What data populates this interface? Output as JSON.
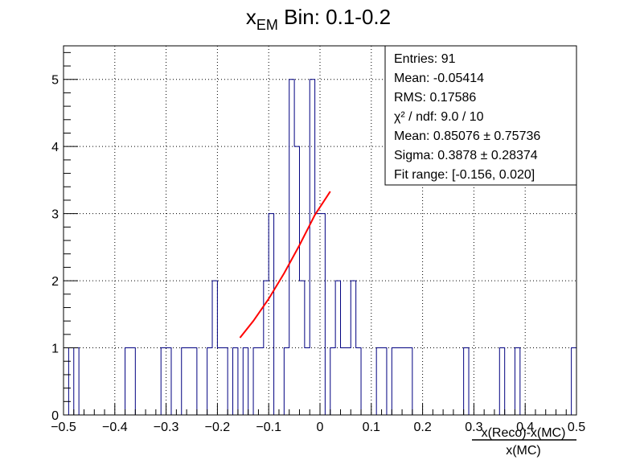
{
  "chart_data": {
    "type": "bar",
    "title": {
      "main": "x",
      "sub": "EM",
      "rest": " Bin: 0.1-0.2"
    },
    "xlabel": {
      "numerator": "x(Reco)-x(MC)",
      "denominator": "x(MC)"
    },
    "ylabel": "",
    "xlim": [
      -0.5,
      0.5
    ],
    "ylim": [
      0,
      5.5
    ],
    "grid": true,
    "x_ticks": [
      "−0.5",
      "−0.4",
      "−0.3",
      "−0.2",
      "−0.1",
      "0",
      "0.1",
      "0.2",
      "0.3",
      "0.4",
      "0.5"
    ],
    "y_ticks": [
      "0",
      "1",
      "2",
      "3",
      "4",
      "5"
    ],
    "bins": {
      "start": -0.5,
      "width": 0.01
    },
    "counts": [
      1,
      0,
      1,
      0,
      0,
      0,
      0,
      0,
      0,
      0,
      0,
      0,
      1,
      1,
      0,
      0,
      0,
      0,
      0,
      1,
      1,
      0,
      0,
      1,
      1,
      1,
      0,
      0,
      1,
      2,
      1,
      1,
      0,
      1,
      0,
      1,
      0,
      1,
      1,
      2,
      3,
      0,
      0,
      1,
      5,
      4,
      2,
      1,
      5,
      3,
      3,
      0,
      1,
      2,
      1,
      1,
      2,
      1,
      0,
      0,
      0,
      1,
      1,
      0,
      1,
      1,
      1,
      1,
      0,
      0,
      0,
      0,
      0,
      0,
      0,
      0,
      0,
      0,
      1,
      0,
      0,
      0,
      0,
      0,
      0,
      1,
      0,
      0,
      1,
      0,
      0,
      0,
      0,
      0,
      0,
      0,
      0,
      0,
      0,
      1
    ],
    "series_color": "#000080",
    "fit": {
      "type": "gaussian",
      "color": "#ff0000",
      "constant": 0.85076,
      "mean": 0.85076,
      "sigma": 0.3878,
      "range": [
        -0.156,
        0.02
      ],
      "points": [
        [
          -0.156,
          1.15
        ],
        [
          -0.13,
          1.4
        ],
        [
          -0.1,
          1.73
        ],
        [
          -0.07,
          2.11
        ],
        [
          -0.04,
          2.53
        ],
        [
          -0.01,
          2.98
        ],
        [
          0.02,
          3.33
        ]
      ]
    },
    "stats": [
      "Entries: 91",
      "Mean: -0.05414",
      "RMS: 0.17586",
      "χ² / ndf: 9.0 / 10",
      "Mean: 0.85076    ± 0.75736",
      "Sigma: 0.3878    ± 0.28374",
      "Fit range: [-0.156, 0.020]"
    ]
  }
}
